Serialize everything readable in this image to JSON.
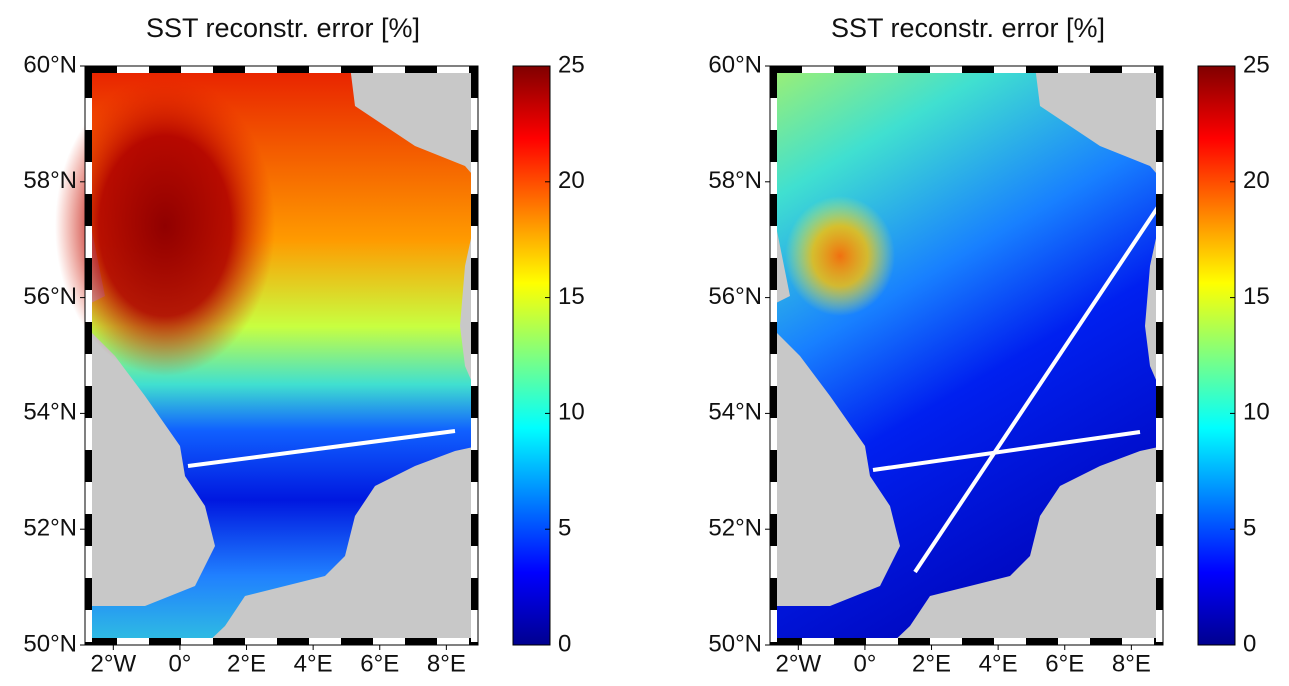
{
  "panels": [
    {
      "title": "SST reconstr. error [%]",
      "xlim": [
        -2.85,
        8.95
      ],
      "ylim": [
        50,
        60
      ],
      "xticks": [
        {
          "value": -2,
          "label": "2°W"
        },
        {
          "value": 0,
          "label": "0°"
        },
        {
          "value": 2,
          "label": "2°E"
        },
        {
          "value": 4,
          "label": "4°E"
        },
        {
          "value": 6,
          "label": "6°E"
        },
        {
          "value": 8,
          "label": "8°E"
        }
      ],
      "yticks": [
        {
          "value": 50,
          "label": "50°N"
        },
        {
          "value": 52,
          "label": "52°N"
        },
        {
          "value": 54,
          "label": "54°N"
        },
        {
          "value": 56,
          "label": "56°N"
        },
        {
          "value": 58,
          "label": "58°N"
        },
        {
          "value": 60,
          "label": "60°N"
        }
      ],
      "colorbar": {
        "lim": [
          0,
          25
        ],
        "ticks": [
          0,
          5,
          10,
          15,
          20,
          25
        ]
      }
    },
    {
      "title": "SST reconstr. error [%]",
      "xlim": [
        -2.85,
        8.95
      ],
      "ylim": [
        50,
        60
      ],
      "xticks": [
        {
          "value": -2,
          "label": "2°W"
        },
        {
          "value": 0,
          "label": "0°"
        },
        {
          "value": 2,
          "label": "2°E"
        },
        {
          "value": 4,
          "label": "4°E"
        },
        {
          "value": 6,
          "label": "6°E"
        },
        {
          "value": 8,
          "label": "8°E"
        }
      ],
      "yticks": [
        {
          "value": 50,
          "label": "50°N"
        },
        {
          "value": 52,
          "label": "52°N"
        },
        {
          "value": 54,
          "label": "54°N"
        },
        {
          "value": 56,
          "label": "56°N"
        },
        {
          "value": 58,
          "label": "58°N"
        },
        {
          "value": 60,
          "label": "60°N"
        }
      ],
      "colorbar": {
        "lim": [
          0,
          25
        ],
        "ticks": [
          0,
          5,
          10,
          15,
          20,
          25
        ]
      }
    }
  ]
}
